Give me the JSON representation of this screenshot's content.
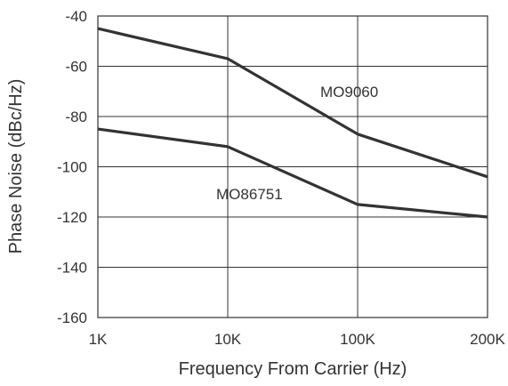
{
  "chart_data": {
    "type": "line",
    "xlabel": "Frequency From Carrier (Hz)",
    "ylabel": "Phase Noise (dBc/Hz)",
    "x_categories": [
      "1K",
      "10K",
      "100K",
      "200K"
    ],
    "ylim": [
      -160,
      -40
    ],
    "yticks": [
      -40,
      -60,
      -80,
      -100,
      -120,
      -140,
      -160
    ],
    "grid": true,
    "legend": "inline labels",
    "series": [
      {
        "name": "MO9060",
        "values": [
          -45,
          -57,
          -87,
          -104
        ]
      },
      {
        "name": "MO86751",
        "values": [
          -85,
          -92,
          -115,
          -120
        ]
      }
    ],
    "line_color": "#333333",
    "grid_color": "#333333"
  }
}
